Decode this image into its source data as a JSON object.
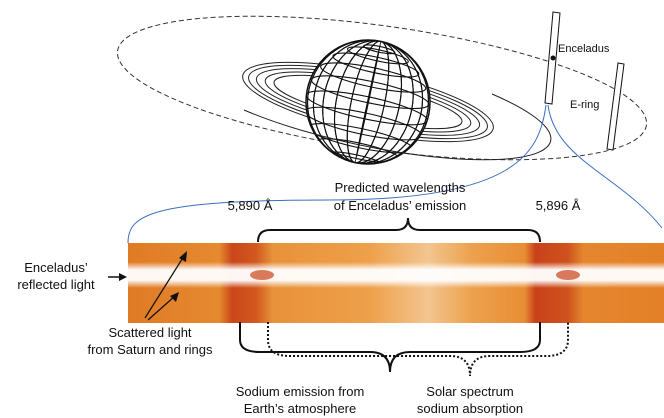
{
  "labels": {
    "enceladus": "Enceladus",
    "e_ring": "E-ring",
    "predicted": [
      "Predicted wavelengths",
      "of Enceladus’ emission"
    ],
    "wavelength_left": "5,890 Å",
    "wavelength_right": "5,896 Å",
    "reflected": [
      "Enceladus’",
      "reflected light"
    ],
    "scattered": [
      "Scattered light",
      "from Saturn and rings"
    ],
    "sodium_emission": [
      "Sodium emission from",
      "Earth’s atmosphere"
    ],
    "solar_absorption": [
      "Solar spectrum",
      "sodium absorption"
    ]
  }
}
